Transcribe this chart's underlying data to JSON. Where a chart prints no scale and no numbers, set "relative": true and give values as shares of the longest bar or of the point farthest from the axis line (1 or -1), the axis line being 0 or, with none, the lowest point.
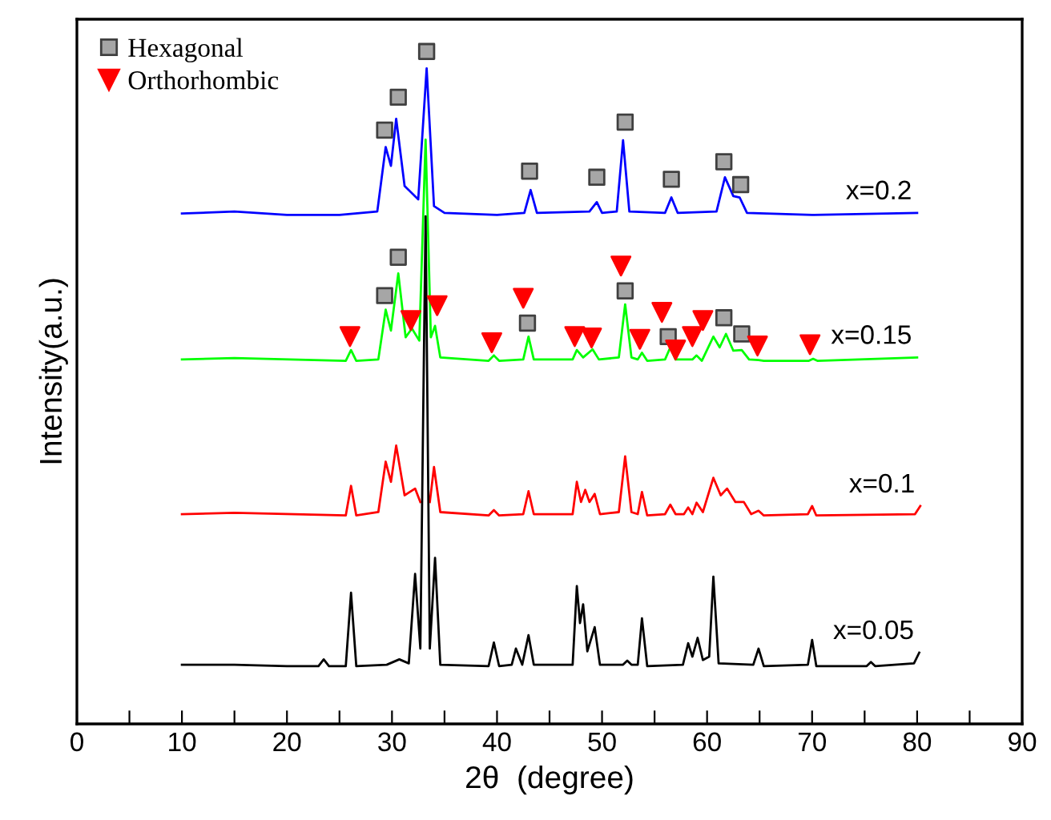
{
  "chart_data": {
    "type": "line",
    "relative": true,
    "xlabel": "2θ  (degree)",
    "ylabel": "Intensity(a.u.)",
    "xlim": [
      0,
      90
    ],
    "xticks": [
      0,
      {
        "value": 5,
        "label": null
      },
      10,
      {
        "value": 15,
        "label": null
      },
      20,
      {
        "value": 25,
        "label": null
      },
      30,
      {
        "value": 35,
        "label": null
      },
      40,
      {
        "value": 45,
        "label": null
      },
      50,
      {
        "value": 55,
        "label": null
      },
      60,
      {
        "value": 65,
        "label": null
      },
      70,
      {
        "value": 75,
        "label": null
      },
      80,
      {
        "value": 85,
        "label": null
      },
      90
    ],
    "tick_labels": "x",
    "grid": false,
    "legend": "top left",
    "series": [
      {
        "name": "x=0.2",
        "color": "#0000ff",
        "x": [
          10,
          15,
          20,
          25,
          28.6,
          29.4,
          29.9,
          30.4,
          31.2,
          32.5,
          33.3,
          34.0,
          35,
          40,
          42.6,
          43.2,
          43.8,
          48.8,
          49.5,
          50.0,
          51.4,
          52.0,
          52.6,
          56.0,
          56.6,
          57.2,
          60.9,
          61.7,
          62.5,
          63.1,
          63.8,
          70,
          80
        ],
        "values": [
          0.759,
          0.762,
          0.757,
          0.757,
          0.762,
          0.858,
          0.83,
          0.9,
          0.8,
          0.78,
          0.975,
          0.77,
          0.76,
          0.757,
          0.76,
          0.794,
          0.76,
          0.762,
          0.776,
          0.76,
          0.762,
          0.868,
          0.762,
          0.76,
          0.783,
          0.76,
          0.762,
          0.813,
          0.785,
          0.783,
          0.76,
          0.757,
          0.76
        ]
      },
      {
        "name": "x=0.15",
        "color": "#00ff00",
        "x": [
          10,
          15,
          25.6,
          26.1,
          26.6,
          28.7,
          29.4,
          29.9,
          30.6,
          31.3,
          31.9,
          32.6,
          33.2,
          33.7,
          34.1,
          34.6,
          39.2,
          39.7,
          40.2,
          42.5,
          43.0,
          43.5,
          47.2,
          47.6,
          48.2,
          49.1,
          49.7,
          51.6,
          52.2,
          52.8,
          53.4,
          53.8,
          54.3,
          56.0,
          56.5,
          57.0,
          58.6,
          59.0,
          59.5,
          60.6,
          61.2,
          61.8,
          62.5,
          63.3,
          64.0,
          64.9,
          65.4,
          69.7,
          70.1,
          70.5,
          80
        ],
        "values": [
          0.542,
          0.544,
          0.54,
          0.556,
          0.54,
          0.542,
          0.616,
          0.585,
          0.67,
          0.575,
          0.588,
          0.57,
          0.869,
          0.575,
          0.592,
          0.545,
          0.54,
          0.548,
          0.54,
          0.542,
          0.576,
          0.542,
          0.542,
          0.556,
          0.545,
          0.557,
          0.542,
          0.545,
          0.624,
          0.545,
          0.542,
          0.552,
          0.54,
          0.542,
          0.56,
          0.542,
          0.542,
          0.548,
          0.54,
          0.576,
          0.56,
          0.58,
          0.555,
          0.556,
          0.542,
          0.541,
          0.54,
          0.54,
          0.543,
          0.54,
          0.545
        ]
      },
      {
        "name": "x=0.1",
        "color": "#ff0000",
        "x": [
          10,
          15,
          25.6,
          26.1,
          26.6,
          28.7,
          29.4,
          29.9,
          30.4,
          31.2,
          32.2,
          32.7,
          33.2,
          33.6,
          34.0,
          34.6,
          39.2,
          39.7,
          40.2,
          42.5,
          43.0,
          43.5,
          47.2,
          47.6,
          48.0,
          48.4,
          48.8,
          49.3,
          49.8,
          51.6,
          52.2,
          52.8,
          53.4,
          53.8,
          54.3,
          56.0,
          56.5,
          57.0,
          57.8,
          58.2,
          58.6,
          59.0,
          59.6,
          60.6,
          61.3,
          61.9,
          62.7,
          63.5,
          64.2,
          64.9,
          65.4,
          69.6,
          70.0,
          70.4,
          79.8,
          80.3
        ],
        "values": [
          0.312,
          0.314,
          0.31,
          0.354,
          0.31,
          0.315,
          0.39,
          0.36,
          0.414,
          0.34,
          0.35,
          0.33,
          null,
          0.33,
          0.382,
          0.315,
          0.31,
          0.318,
          0.31,
          0.312,
          0.346,
          0.312,
          0.312,
          0.36,
          0.33,
          0.348,
          0.33,
          0.342,
          0.312,
          0.315,
          0.398,
          0.315,
          0.312,
          0.345,
          0.31,
          0.312,
          0.326,
          0.312,
          0.312,
          0.322,
          0.312,
          0.329,
          0.315,
          0.366,
          0.34,
          0.35,
          0.33,
          0.33,
          0.312,
          0.317,
          0.31,
          0.312,
          0.324,
          0.31,
          0.312,
          0.324
        ]
      },
      {
        "name": "x=0.05",
        "color": "#000000",
        "x": [
          10,
          15,
          20,
          23.0,
          23.5,
          24.0,
          25.6,
          26.1,
          26.6,
          29.5,
          30.7,
          31.6,
          32.2,
          32.7,
          33.2,
          33.6,
          34.1,
          34.6,
          39.2,
          39.7,
          40.2,
          41.4,
          41.8,
          42.4,
          43.0,
          43.5,
          47.2,
          47.6,
          47.9,
          48.2,
          48.6,
          49.3,
          49.8,
          52.0,
          52.4,
          52.8,
          53.4,
          53.8,
          54.3,
          57.7,
          58.2,
          58.6,
          59.1,
          59.6,
          60.2,
          60.6,
          61.1,
          64.4,
          64.9,
          65.4,
          69.6,
          70.0,
          70.4,
          75.2,
          75.6,
          76.0,
          79.7,
          80.2
        ],
        "values": [
          0.088,
          0.088,
          0.086,
          0.086,
          0.096,
          0.086,
          0.086,
          0.195,
          0.086,
          0.088,
          0.096,
          0.09,
          0.223,
          0.112,
          0.755,
          0.112,
          0.247,
          0.088,
          0.086,
          0.121,
          0.086,
          0.088,
          0.112,
          0.088,
          0.132,
          0.088,
          0.088,
          0.205,
          0.15,
          0.178,
          0.108,
          0.144,
          0.088,
          0.088,
          0.094,
          0.088,
          0.088,
          0.157,
          0.086,
          0.088,
          0.12,
          0.1,
          0.128,
          0.095,
          0.1,
          0.219,
          0.09,
          0.088,
          0.112,
          0.086,
          0.088,
          0.125,
          0.086,
          0.086,
          0.092,
          0.086,
          0.09,
          0.106
        ]
      },
      {
        "type": "scatter",
        "name": "Hexagonal",
        "marker": "square",
        "color": "#a6a6a6",
        "x": [
          29.3,
          30.6,
          33.3,
          43.1,
          49.5,
          52.2,
          56.6,
          61.6,
          63.2,
          29.3,
          30.6,
          42.9,
          52.2,
          56.3,
          61.6,
          63.3
        ],
        "values": [
          0.883,
          0.932,
          1.0,
          0.822,
          0.813,
          0.895,
          0.81,
          0.836,
          0.802,
          0.637,
          0.694,
          0.596,
          0.644,
          0.576,
          0.604,
          0.58
        ]
      },
      {
        "type": "scatter",
        "name": "Orthorhombic",
        "marker": "triangle",
        "color": "#ff0000",
        "x": [
          26.0,
          31.8,
          34.3,
          39.5,
          42.5,
          47.4,
          49.0,
          51.8,
          53.6,
          55.7,
          57.0,
          58.6,
          59.6,
          64.8,
          69.8
        ],
        "values": [
          0.576,
          0.6,
          0.622,
          0.567,
          0.633,
          0.576,
          0.574,
          0.681,
          0.572,
          0.612,
          0.556,
          0.576,
          0.6,
          0.562,
          0.564
        ]
      }
    ]
  }
}
